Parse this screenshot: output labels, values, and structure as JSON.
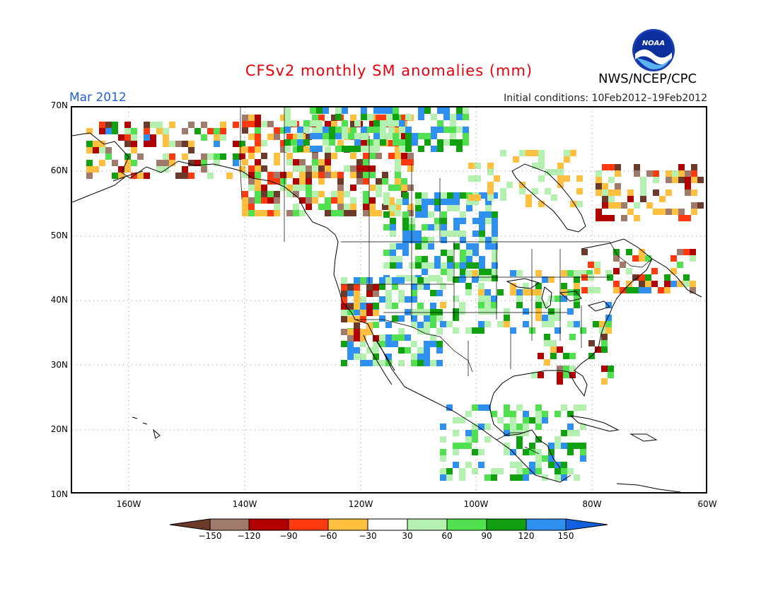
{
  "header": {
    "title": "CFSv2 monthly SM anomalies (mm)",
    "period": "Mar 2012",
    "initial_conditions": "Initial conditions: 10Feb2012–19Feb2012",
    "agency": "NWS/NCEP/CPC",
    "logo_text": "NOAA"
  },
  "map": {
    "lat_labels": [
      "70N",
      "60N",
      "50N",
      "40N",
      "30N",
      "20N",
      "10N"
    ],
    "lon_labels": [
      "160W",
      "140W",
      "120W",
      "100W",
      "80W",
      "60W"
    ],
    "lat_range": [
      10,
      70
    ],
    "lon_range": [
      -170,
      -60
    ],
    "grid": "dotted"
  },
  "legend": {
    "labels": [
      "−150",
      "−120",
      "−90",
      "−60",
      "−30",
      "30",
      "60",
      "90",
      "120",
      "150"
    ],
    "colors": {
      "lt_neg150": "#6b3a2a",
      "neg150_neg120": "#a07a6a",
      "neg120_neg90": "#b00000",
      "neg90_neg60": "#ff3a10",
      "neg60_neg30": "#ffc040",
      "neutral": "#ffffff",
      "p30_p60": "#b4f0b0",
      "p60_p90": "#50e050",
      "p90_p120": "#10a010",
      "p120_p150": "#3090f0",
      "gt150": "#1060e0"
    }
  }
}
